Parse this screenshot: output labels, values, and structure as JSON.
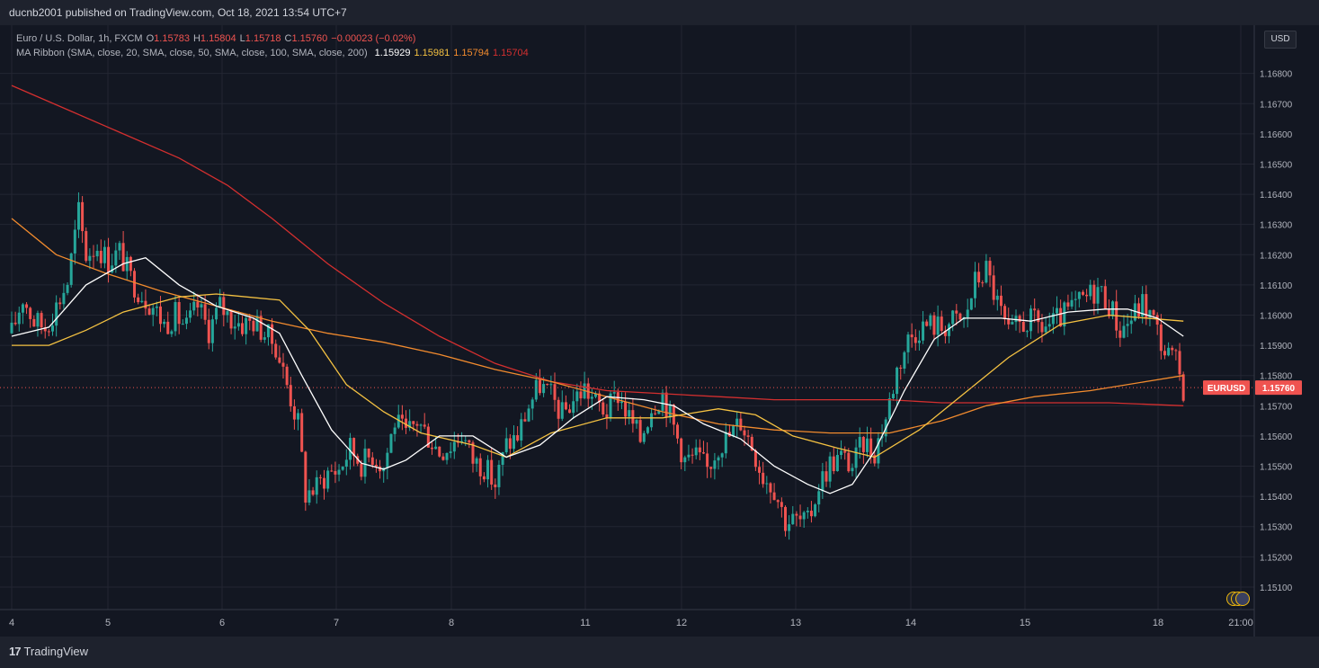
{
  "header": {
    "published": "ducnb2001 published on TradingView.com, Oct 18, 2021 13:54 UTC+7"
  },
  "footer": {
    "brand": "TradingView",
    "logo_mark": "17"
  },
  "legend": {
    "symbol": "Euro / U.S. Dollar, 1h, FXCM",
    "o_label": "O",
    "o_value": "1.15783",
    "h_label": "H",
    "h_value": "1.15804",
    "l_label": "L",
    "l_value": "1.15718",
    "c_label": "C",
    "c_value": "1.15760",
    "change": "−0.00023 (−0.02%)",
    "ma_title": "MA Ribbon (SMA, close, 20, SMA, close, 50, SMA, close, 100, SMA, close, 200)",
    "ma20": "1.15929",
    "ma50": "1.15981",
    "ma100": "1.15794",
    "ma200": "1.15704"
  },
  "currency_button": "USD",
  "price_tag": {
    "symbol": "EURUSD",
    "value": "1.15760"
  },
  "colors": {
    "up": "#26a69a",
    "down": "#ef5350",
    "ma20": "#ffffff",
    "ma50": "#f5c242",
    "ma100": "#f28b2e",
    "ma200": "#d32f2f",
    "grid": "#232632",
    "background": "#131722"
  },
  "chart_data": {
    "type": "candlestick",
    "symbol": "EURUSD",
    "interval": "1h",
    "ylim": [
      1.151,
      1.169
    ],
    "y_ticks": [
      "1.16800",
      "1.16700",
      "1.16600",
      "1.16500",
      "1.16400",
      "1.16300",
      "1.16200",
      "1.16100",
      "1.16000",
      "1.15900",
      "1.15800",
      "1.15700",
      "1.15600",
      "1.15500",
      "1.15400",
      "1.15300",
      "1.15200",
      "1.15100"
    ],
    "x_ticks": [
      "4",
      "5",
      "6",
      "7",
      "8",
      "11",
      "12",
      "13",
      "14",
      "15",
      "18",
      "21:00"
    ],
    "last_price": 1.1576,
    "close_path": [
      [
        0,
        1.1594
      ],
      [
        3,
        1.1606
      ],
      [
        6,
        1.1598
      ],
      [
        9,
        1.1596
      ],
      [
        12,
        1.1603
      ],
      [
        15,
        1.1611
      ],
      [
        18,
        1.1634
      ],
      [
        20,
        1.162
      ],
      [
        23,
        1.1623
      ],
      [
        26,
        1.1618
      ],
      [
        29,
        1.1621
      ],
      [
        32,
        1.1612
      ],
      [
        35,
        1.1607
      ],
      [
        38,
        1.1603
      ],
      [
        41,
        1.1597
      ],
      [
        44,
        1.16
      ],
      [
        47,
        1.1596
      ],
      [
        50,
        1.1603
      ],
      [
        53,
        1.1595
      ],
      [
        56,
        1.1603
      ],
      [
        59,
        1.1599
      ],
      [
        62,
        1.1597
      ],
      [
        65,
        1.1598
      ],
      [
        68,
        1.1594
      ],
      [
        71,
        1.159
      ],
      [
        74,
        1.1577
      ],
      [
        77,
        1.1564
      ],
      [
        79,
        1.1541
      ],
      [
        82,
        1.1543
      ],
      [
        85,
        1.1548
      ],
      [
        88,
        1.1549
      ],
      [
        91,
        1.1556
      ],
      [
        94,
        1.1551
      ],
      [
        97,
        1.1554
      ],
      [
        100,
        1.155
      ],
      [
        103,
        1.1565
      ],
      [
        106,
        1.156
      ],
      [
        109,
        1.1565
      ],
      [
        112,
        1.156
      ],
      [
        115,
        1.1555
      ],
      [
        118,
        1.1557
      ],
      [
        121,
        1.1561
      ],
      [
        124,
        1.1552
      ],
      [
        127,
        1.155
      ],
      [
        130,
        1.1544
      ],
      [
        133,
        1.1557
      ],
      [
        136,
        1.156
      ],
      [
        139,
        1.157
      ],
      [
        142,
        1.1577
      ],
      [
        145,
        1.1573
      ],
      [
        148,
        1.1567
      ],
      [
        151,
        1.1572
      ],
      [
        154,
        1.1576
      ],
      [
        157,
        1.1571
      ],
      [
        160,
        1.1568
      ],
      [
        163,
        1.1574
      ],
      [
        166,
        1.1566
      ],
      [
        169,
        1.1559
      ],
      [
        172,
        1.157
      ],
      [
        175,
        1.1574
      ],
      [
        178,
        1.1563
      ],
      [
        181,
        1.1552
      ],
      [
        184,
        1.1553
      ],
      [
        187,
        1.1549
      ],
      [
        190,
        1.1557
      ],
      [
        193,
        1.156
      ],
      [
        196,
        1.1565
      ],
      [
        199,
        1.1557
      ],
      [
        202,
        1.1547
      ],
      [
        205,
        1.1543
      ],
      [
        208,
        1.1532
      ],
      [
        211,
        1.1532
      ],
      [
        214,
        1.1531
      ],
      [
        217,
        1.1544
      ],
      [
        220,
        1.1551
      ],
      [
        223,
        1.1553
      ],
      [
        226,
        1.155
      ],
      [
        229,
        1.1558
      ],
      [
        232,
        1.1555
      ],
      [
        235,
        1.1566
      ],
      [
        238,
        1.1582
      ],
      [
        241,
        1.1592
      ],
      [
        244,
        1.1596
      ],
      [
        247,
        1.1597
      ],
      [
        250,
        1.1596
      ],
      [
        253,
        1.1598
      ],
      [
        256,
        1.1598
      ],
      [
        259,
        1.1611
      ],
      [
        262,
        1.1615
      ],
      [
        265,
        1.1604
      ],
      [
        268,
        1.1593
      ],
      [
        271,
        1.1597
      ],
      [
        274,
        1.1598
      ],
      [
        277,
        1.1596
      ],
      [
        280,
        1.1597
      ],
      [
        283,
        1.16
      ],
      [
        286,
        1.1603
      ],
      [
        289,
        1.1606
      ],
      [
        292,
        1.1609
      ],
      [
        295,
        1.1604
      ],
      [
        298,
        1.1595
      ],
      [
        301,
        1.1599
      ],
      [
        304,
        1.1604
      ],
      [
        307,
        1.1598
      ],
      [
        310,
        1.1588
      ],
      [
        313,
        1.1584
      ],
      [
        315,
        1.1576
      ]
    ],
    "ma20": [
      [
        0,
        1.1593
      ],
      [
        10,
        1.1596
      ],
      [
        20,
        1.161
      ],
      [
        30,
        1.1617
      ],
      [
        36,
        1.1619
      ],
      [
        45,
        1.161
      ],
      [
        55,
        1.1603
      ],
      [
        65,
        1.1599
      ],
      [
        72,
        1.1594
      ],
      [
        78,
        1.158
      ],
      [
        86,
        1.1562
      ],
      [
        94,
        1.1551
      ],
      [
        100,
        1.1549
      ],
      [
        106,
        1.1552
      ],
      [
        115,
        1.156
      ],
      [
        124,
        1.156
      ],
      [
        133,
        1.1553
      ],
      [
        142,
        1.1557
      ],
      [
        151,
        1.1566
      ],
      [
        160,
        1.1573
      ],
      [
        170,
        1.1572
      ],
      [
        178,
        1.157
      ],
      [
        186,
        1.1564
      ],
      [
        196,
        1.1559
      ],
      [
        205,
        1.155
      ],
      [
        214,
        1.1544
      ],
      [
        220,
        1.1541
      ],
      [
        226,
        1.1544
      ],
      [
        232,
        1.1555
      ],
      [
        240,
        1.1575
      ],
      [
        248,
        1.1592
      ],
      [
        256,
        1.1599
      ],
      [
        266,
        1.1599
      ],
      [
        274,
        1.1598
      ],
      [
        284,
        1.1601
      ],
      [
        294,
        1.1602
      ],
      [
        300,
        1.1602
      ],
      [
        308,
        1.1599
      ],
      [
        315,
        1.1593
      ]
    ],
    "ma50": [
      [
        0,
        1.159
      ],
      [
        10,
        1.159
      ],
      [
        20,
        1.1595
      ],
      [
        30,
        1.1601
      ],
      [
        45,
        1.1606
      ],
      [
        55,
        1.1607
      ],
      [
        72,
        1.1605
      ],
      [
        80,
        1.1595
      ],
      [
        90,
        1.1577
      ],
      [
        100,
        1.1568
      ],
      [
        110,
        1.1561
      ],
      [
        124,
        1.1557
      ],
      [
        133,
        1.1553
      ],
      [
        145,
        1.1561
      ],
      [
        160,
        1.1566
      ],
      [
        175,
        1.1566
      ],
      [
        190,
        1.1569
      ],
      [
        200,
        1.1567
      ],
      [
        210,
        1.156
      ],
      [
        222,
        1.1556
      ],
      [
        232,
        1.1553
      ],
      [
        244,
        1.1562
      ],
      [
        256,
        1.1574
      ],
      [
        268,
        1.1586
      ],
      [
        282,
        1.1597
      ],
      [
        295,
        1.16
      ],
      [
        315,
        1.1598
      ]
    ],
    "ma100": [
      [
        0,
        1.1632
      ],
      [
        12,
        1.162
      ],
      [
        25,
        1.1614
      ],
      [
        40,
        1.1608
      ],
      [
        55,
        1.1603
      ],
      [
        70,
        1.1598
      ],
      [
        85,
        1.1594
      ],
      [
        100,
        1.1591
      ],
      [
        115,
        1.1587
      ],
      [
        130,
        1.1582
      ],
      [
        145,
        1.1578
      ],
      [
        160,
        1.1573
      ],
      [
        175,
        1.1568
      ],
      [
        190,
        1.1564
      ],
      [
        205,
        1.1562
      ],
      [
        220,
        1.1561
      ],
      [
        236,
        1.1561
      ],
      [
        250,
        1.1565
      ],
      [
        262,
        1.157
      ],
      [
        275,
        1.1573
      ],
      [
        290,
        1.1575
      ],
      [
        305,
        1.1578
      ],
      [
        315,
        1.158
      ]
    ],
    "ma200": [
      [
        0,
        1.1676
      ],
      [
        15,
        1.1668
      ],
      [
        30,
        1.166
      ],
      [
        45,
        1.1652
      ],
      [
        58,
        1.1643
      ],
      [
        70,
        1.1632
      ],
      [
        85,
        1.1617
      ],
      [
        100,
        1.1604
      ],
      [
        115,
        1.1593
      ],
      [
        130,
        1.1584
      ],
      [
        145,
        1.1578
      ],
      [
        160,
        1.1575
      ],
      [
        175,
        1.1574
      ],
      [
        190,
        1.1573
      ],
      [
        205,
        1.1572
      ],
      [
        220,
        1.1572
      ],
      [
        236,
        1.1572
      ],
      [
        250,
        1.1571
      ],
      [
        265,
        1.1571
      ],
      [
        280,
        1.1571
      ],
      [
        295,
        1.1571
      ],
      [
        315,
        1.157
      ]
    ]
  }
}
